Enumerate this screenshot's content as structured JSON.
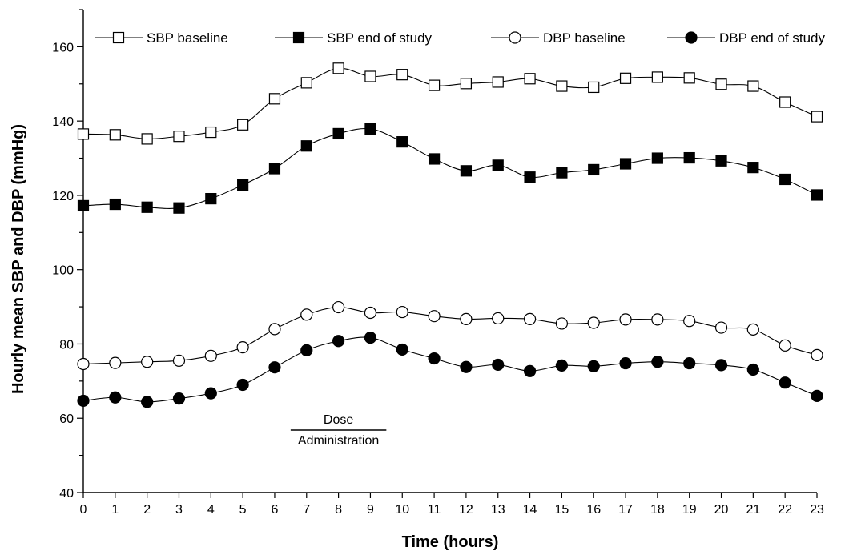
{
  "chart_data": {
    "type": "line",
    "title": "",
    "xlabel": "Time (hours)",
    "ylabel": "Hourly mean SBP and DBP (mmHg)",
    "x": [
      0,
      1,
      2,
      3,
      4,
      5,
      6,
      7,
      8,
      9,
      10,
      11,
      12,
      13,
      14,
      15,
      16,
      17,
      18,
      19,
      20,
      21,
      22,
      23
    ],
    "xticks": [
      "0",
      "1",
      "2",
      "3",
      "4",
      "5",
      "6",
      "7",
      "8",
      "9",
      "10",
      "11",
      "12",
      "13",
      "14",
      "15",
      "16",
      "17",
      "18",
      "19",
      "20",
      "21",
      "22",
      "23"
    ],
    "xlim": [
      0,
      23
    ],
    "ylim": [
      40,
      170
    ],
    "yticks": [
      "40",
      "60",
      "80",
      "100",
      "120",
      "140",
      "160"
    ],
    "grid": false,
    "legend_position": "top",
    "series": [
      {
        "name": "SBP baseline",
        "marker": "open-square",
        "color": "#000000",
        "values": [
          136.5,
          136.3,
          135.2,
          135.9,
          137.0,
          139.0,
          146.0,
          150.3,
          154.2,
          152.0,
          152.5,
          149.6,
          150.1,
          150.5,
          151.4,
          149.4,
          149.1,
          151.5,
          151.8,
          151.6,
          149.9,
          149.4,
          145.1,
          141.2
        ]
      },
      {
        "name": "SBP end of study",
        "marker": "filled-square",
        "color": "#000000",
        "values": [
          117.2,
          117.6,
          116.8,
          116.6,
          119.1,
          122.8,
          127.2,
          133.3,
          136.6,
          137.9,
          134.4,
          129.8,
          126.6,
          128.1,
          124.9,
          126.1,
          126.9,
          128.5,
          130.0,
          130.1,
          129.3,
          127.5,
          124.3,
          120.1
        ]
      },
      {
        "name": "DBP baseline",
        "marker": "open-circle",
        "color": "#000000",
        "values": [
          74.6,
          74.9,
          75.2,
          75.5,
          76.8,
          79.1,
          84.0,
          87.9,
          89.9,
          88.4,
          88.6,
          87.5,
          86.7,
          86.9,
          86.7,
          85.5,
          85.7,
          86.6,
          86.6,
          86.2,
          84.4,
          83.9,
          79.6,
          77.0
        ]
      },
      {
        "name": "DBP end of study",
        "marker": "filled-circle",
        "color": "#000000",
        "values": [
          64.7,
          65.6,
          64.4,
          65.3,
          66.7,
          69.0,
          73.7,
          78.3,
          80.8,
          81.7,
          78.5,
          76.1,
          73.8,
          74.4,
          72.7,
          74.2,
          74.0,
          74.8,
          75.2,
          74.8,
          74.3,
          73.1,
          69.6,
          66.0
        ]
      }
    ],
    "annotations": [
      {
        "text_top": "Dose",
        "text_bottom": "Administration",
        "x_start": 6.5,
        "x_end": 9.5
      }
    ]
  }
}
